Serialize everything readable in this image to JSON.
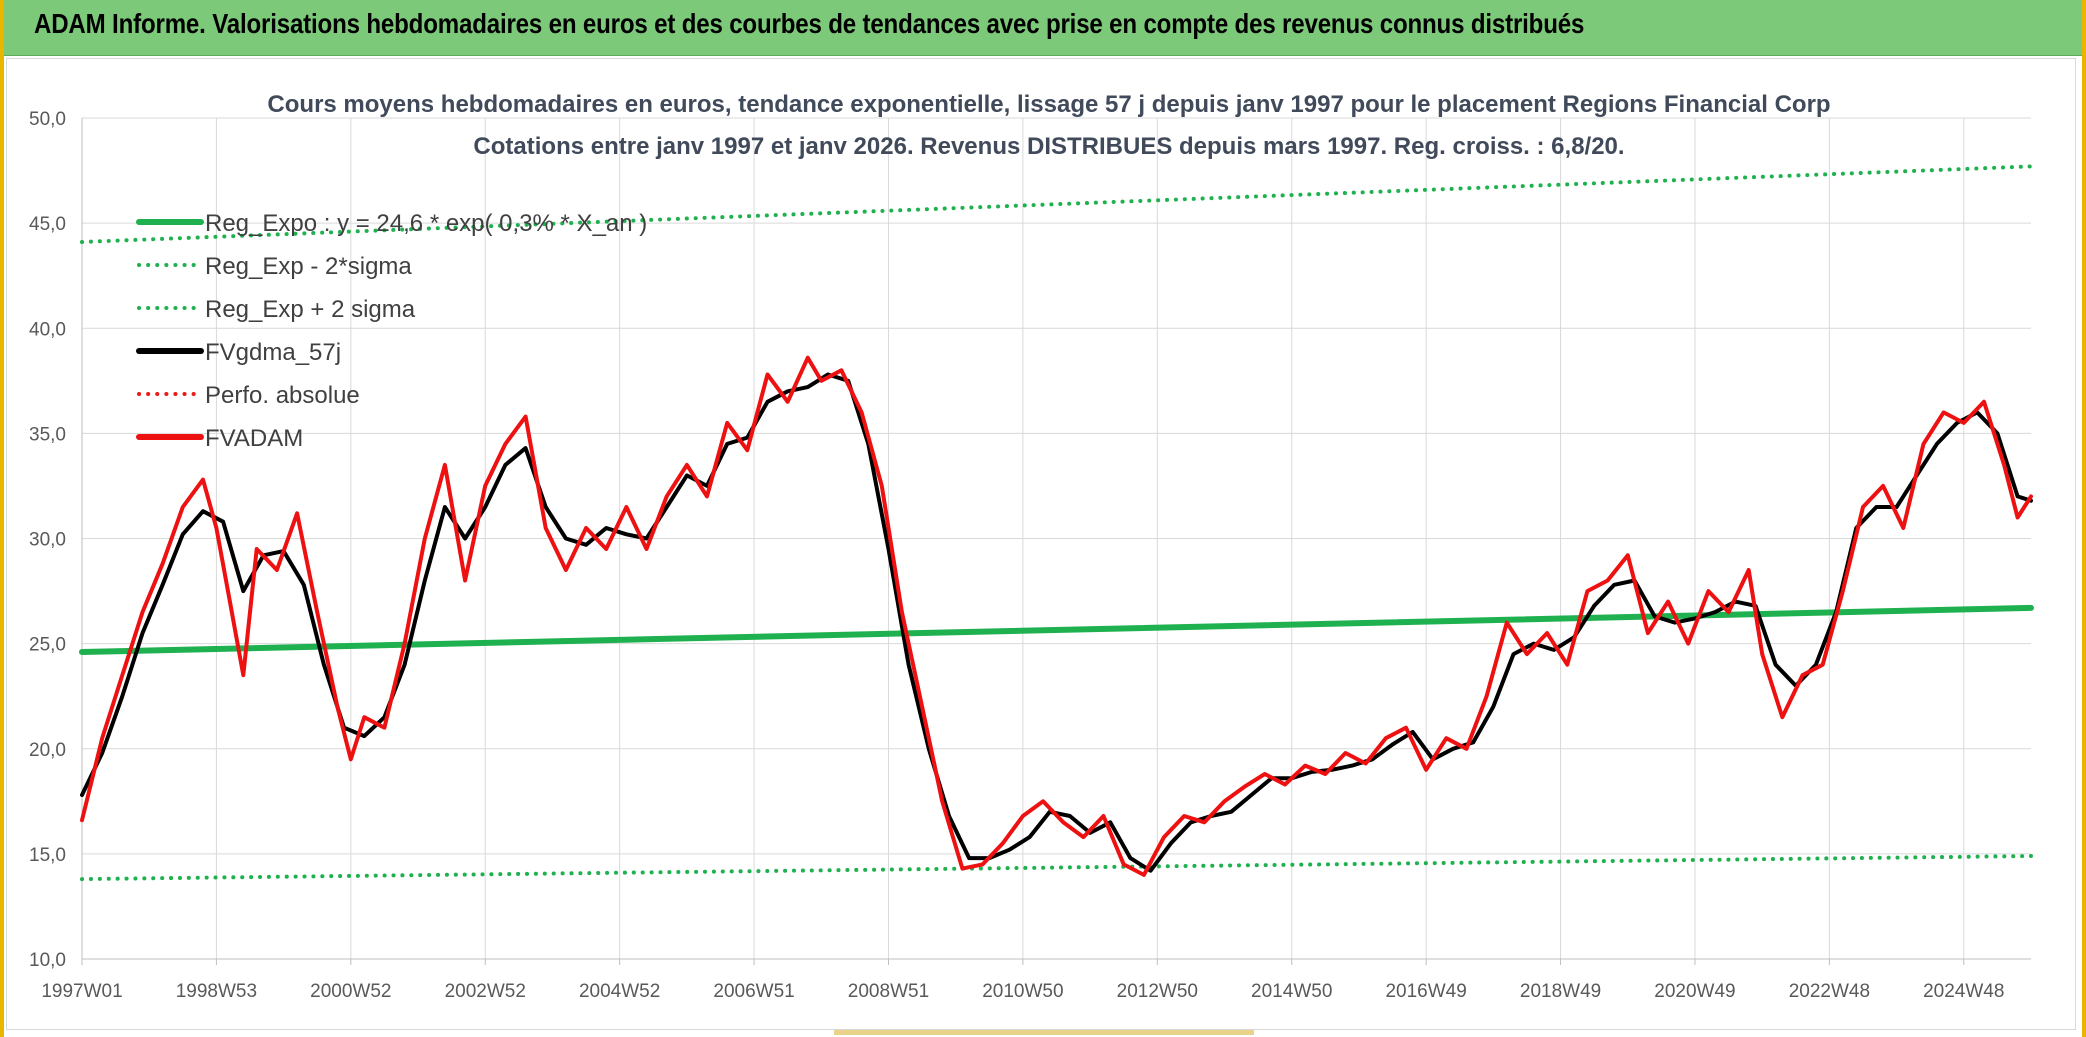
{
  "header": {
    "title": "ADAM Informe. Valorisations hebdomadaires en euros et des courbes de tendances avec prise en compte des revenus connus distribués"
  },
  "chart_data": {
    "type": "line",
    "title_lines": [
      "Cours moyens hebdomadaires en euros, tendance exponentielle, lissage 57 j depuis janv 1997 pour le placement Regions Financial Corp",
      "Cotations entre janv 1997 et janv 2026. Revenus DISTRIBUES depuis mars 1997. Reg. croiss. : 6,8/20."
    ],
    "xlabel": "",
    "ylabel": "",
    "xlim": [
      1997.0,
      2026.0
    ],
    "ylim": [
      10.0,
      50.0
    ],
    "y_ticks": [
      "10,0",
      "15,0",
      "20,0",
      "25,0",
      "30,0",
      "35,0",
      "40,0",
      "45,0",
      "50,0"
    ],
    "x_ticks": [
      {
        "label": "1997W01",
        "x": 1997.0
      },
      {
        "label": "1998W53",
        "x": 1999.0
      },
      {
        "label": "2000W52",
        "x": 2001.0
      },
      {
        "label": "2002W52",
        "x": 2003.0
      },
      {
        "label": "2004W52",
        "x": 2005.0
      },
      {
        "label": "2006W51",
        "x": 2007.0
      },
      {
        "label": "2008W51",
        "x": 2009.0
      },
      {
        "label": "2010W50",
        "x": 2011.0
      },
      {
        "label": "2012W50",
        "x": 2013.0
      },
      {
        "label": "2014W50",
        "x": 2015.0
      },
      {
        "label": "2016W49",
        "x": 2017.0
      },
      {
        "label": "2018W49",
        "x": 2019.0
      },
      {
        "label": "2020W49",
        "x": 2021.0
      },
      {
        "label": "2022W48",
        "x": 2023.0
      },
      {
        "label": "2024W48",
        "x": 2025.0
      }
    ],
    "grid": true,
    "legend_position": "top-left",
    "series": [
      {
        "name": "Reg_Expo : y = 24,6 * exp( 0,3% * X_an )",
        "color": "#1fb14f",
        "style": "solid",
        "width": 6,
        "points": [
          [
            1997.0,
            24.6
          ],
          [
            2026.0,
            26.7
          ]
        ]
      },
      {
        "name": "Reg_Exp - 2*sigma",
        "color": "#1fb14f",
        "style": "dotted",
        "width": 4,
        "points": [
          [
            1997.0,
            13.8
          ],
          [
            2026.0,
            14.9
          ]
        ]
      },
      {
        "name": "Reg_Exp + 2 sigma",
        "color": "#1fb14f",
        "style": "dotted",
        "width": 4,
        "points": [
          [
            1997.0,
            44.1
          ],
          [
            2026.0,
            47.7
          ]
        ]
      },
      {
        "name": "FVgdma_57j",
        "color": "#000000",
        "style": "solid",
        "width": 4,
        "points": [
          [
            1997.0,
            17.8
          ],
          [
            1997.3,
            19.8
          ],
          [
            1997.6,
            22.5
          ],
          [
            1997.9,
            25.5
          ],
          [
            1998.2,
            27.8
          ],
          [
            1998.5,
            30.2
          ],
          [
            1998.8,
            31.3
          ],
          [
            1999.1,
            30.8
          ],
          [
            1999.4,
            27.5
          ],
          [
            1999.7,
            29.2
          ],
          [
            2000.0,
            29.4
          ],
          [
            2000.3,
            27.8
          ],
          [
            2000.6,
            24.0
          ],
          [
            2000.9,
            21.0
          ],
          [
            2001.2,
            20.6
          ],
          [
            2001.5,
            21.5
          ],
          [
            2001.8,
            24.0
          ],
          [
            2002.1,
            28.0
          ],
          [
            2002.4,
            31.5
          ],
          [
            2002.7,
            30.0
          ],
          [
            2003.0,
            31.5
          ],
          [
            2003.3,
            33.5
          ],
          [
            2003.6,
            34.3
          ],
          [
            2003.9,
            31.5
          ],
          [
            2004.2,
            30.0
          ],
          [
            2004.5,
            29.7
          ],
          [
            2004.8,
            30.5
          ],
          [
            2005.1,
            30.2
          ],
          [
            2005.4,
            30.0
          ],
          [
            2005.7,
            31.5
          ],
          [
            2006.0,
            33.0
          ],
          [
            2006.3,
            32.5
          ],
          [
            2006.6,
            34.5
          ],
          [
            2006.9,
            34.8
          ],
          [
            2007.2,
            36.5
          ],
          [
            2007.5,
            37.0
          ],
          [
            2007.8,
            37.2
          ],
          [
            2008.1,
            37.8
          ],
          [
            2008.4,
            37.5
          ],
          [
            2008.7,
            34.5
          ],
          [
            2009.0,
            29.5
          ],
          [
            2009.3,
            24.0
          ],
          [
            2009.6,
            20.0
          ],
          [
            2009.9,
            16.8
          ],
          [
            2010.2,
            14.8
          ],
          [
            2010.5,
            14.8
          ],
          [
            2010.8,
            15.2
          ],
          [
            2011.1,
            15.8
          ],
          [
            2011.4,
            17.0
          ],
          [
            2011.7,
            16.8
          ],
          [
            2012.0,
            16.0
          ],
          [
            2012.3,
            16.5
          ],
          [
            2012.6,
            14.8
          ],
          [
            2012.9,
            14.2
          ],
          [
            2013.2,
            15.5
          ],
          [
            2013.5,
            16.5
          ],
          [
            2013.8,
            16.8
          ],
          [
            2014.1,
            17.0
          ],
          [
            2014.4,
            17.8
          ],
          [
            2014.7,
            18.6
          ],
          [
            2015.0,
            18.6
          ],
          [
            2015.3,
            18.9
          ],
          [
            2015.6,
            19.0
          ],
          [
            2015.9,
            19.2
          ],
          [
            2016.2,
            19.5
          ],
          [
            2016.5,
            20.2
          ],
          [
            2016.8,
            20.8
          ],
          [
            2017.1,
            19.5
          ],
          [
            2017.4,
            20.0
          ],
          [
            2017.7,
            20.3
          ],
          [
            2018.0,
            22.0
          ],
          [
            2018.3,
            24.5
          ],
          [
            2018.6,
            25.0
          ],
          [
            2018.9,
            24.7
          ],
          [
            2019.2,
            25.3
          ],
          [
            2019.5,
            26.8
          ],
          [
            2019.8,
            27.8
          ],
          [
            2020.1,
            28.0
          ],
          [
            2020.4,
            26.3
          ],
          [
            2020.7,
            26.0
          ],
          [
            2021.0,
            26.2
          ],
          [
            2021.3,
            26.5
          ],
          [
            2021.6,
            27.0
          ],
          [
            2021.9,
            26.8
          ],
          [
            2022.2,
            24.0
          ],
          [
            2022.5,
            23.0
          ],
          [
            2022.8,
            24.0
          ],
          [
            2023.1,
            26.5
          ],
          [
            2023.4,
            30.5
          ],
          [
            2023.7,
            31.5
          ],
          [
            2024.0,
            31.5
          ],
          [
            2024.3,
            33.0
          ],
          [
            2024.6,
            34.5
          ],
          [
            2024.9,
            35.5
          ],
          [
            2025.2,
            36.0
          ],
          [
            2025.5,
            35.0
          ],
          [
            2025.8,
            32.0
          ],
          [
            2026.0,
            31.8
          ]
        ]
      },
      {
        "name": "Perfo. absolue",
        "color": "#e81c1c",
        "style": "dotted",
        "width": 3,
        "points": []
      },
      {
        "name": "FVADAM",
        "color": "#ee1111",
        "style": "solid",
        "width": 4,
        "points": [
          [
            1997.0,
            16.6
          ],
          [
            1997.3,
            20.5
          ],
          [
            1997.6,
            23.5
          ],
          [
            1997.9,
            26.5
          ],
          [
            1998.2,
            28.8
          ],
          [
            1998.5,
            31.5
          ],
          [
            1998.8,
            32.8
          ],
          [
            1999.0,
            30.5
          ],
          [
            1999.2,
            27.0
          ],
          [
            1999.4,
            23.5
          ],
          [
            1999.6,
            29.5
          ],
          [
            1999.9,
            28.5
          ],
          [
            2000.2,
            31.2
          ],
          [
            2000.5,
            26.5
          ],
          [
            2000.8,
            22.0
          ],
          [
            2001.0,
            19.5
          ],
          [
            2001.2,
            21.5
          ],
          [
            2001.5,
            21.0
          ],
          [
            2001.8,
            25.0
          ],
          [
            2002.1,
            30.0
          ],
          [
            2002.4,
            33.5
          ],
          [
            2002.7,
            28.0
          ],
          [
            2003.0,
            32.5
          ],
          [
            2003.3,
            34.5
          ],
          [
            2003.6,
            35.8
          ],
          [
            2003.9,
            30.5
          ],
          [
            2004.2,
            28.5
          ],
          [
            2004.5,
            30.5
          ],
          [
            2004.8,
            29.5
          ],
          [
            2005.1,
            31.5
          ],
          [
            2005.4,
            29.5
          ],
          [
            2005.7,
            32.0
          ],
          [
            2006.0,
            33.5
          ],
          [
            2006.3,
            32.0
          ],
          [
            2006.6,
            35.5
          ],
          [
            2006.9,
            34.2
          ],
          [
            2007.2,
            37.8
          ],
          [
            2007.5,
            36.5
          ],
          [
            2007.8,
            38.6
          ],
          [
            2008.0,
            37.5
          ],
          [
            2008.3,
            38.0
          ],
          [
            2008.6,
            36.0
          ],
          [
            2008.9,
            32.5
          ],
          [
            2009.2,
            26.5
          ],
          [
            2009.5,
            22.0
          ],
          [
            2009.8,
            17.5
          ],
          [
            2010.1,
            14.3
          ],
          [
            2010.4,
            14.5
          ],
          [
            2010.7,
            15.5
          ],
          [
            2011.0,
            16.8
          ],
          [
            2011.3,
            17.5
          ],
          [
            2011.6,
            16.5
          ],
          [
            2011.9,
            15.8
          ],
          [
            2012.2,
            16.8
          ],
          [
            2012.5,
            14.5
          ],
          [
            2012.8,
            14.0
          ],
          [
            2013.1,
            15.8
          ],
          [
            2013.4,
            16.8
          ],
          [
            2013.7,
            16.5
          ],
          [
            2014.0,
            17.5
          ],
          [
            2014.3,
            18.2
          ],
          [
            2014.6,
            18.8
          ],
          [
            2014.9,
            18.3
          ],
          [
            2015.2,
            19.2
          ],
          [
            2015.5,
            18.8
          ],
          [
            2015.8,
            19.8
          ],
          [
            2016.1,
            19.3
          ],
          [
            2016.4,
            20.5
          ],
          [
            2016.7,
            21.0
          ],
          [
            2017.0,
            19.0
          ],
          [
            2017.3,
            20.5
          ],
          [
            2017.6,
            20.0
          ],
          [
            2017.9,
            22.5
          ],
          [
            2018.2,
            26.0
          ],
          [
            2018.5,
            24.5
          ],
          [
            2018.8,
            25.5
          ],
          [
            2019.1,
            24.0
          ],
          [
            2019.4,
            27.5
          ],
          [
            2019.7,
            28.0
          ],
          [
            2020.0,
            29.2
          ],
          [
            2020.3,
            25.5
          ],
          [
            2020.6,
            27.0
          ],
          [
            2020.9,
            25.0
          ],
          [
            2021.2,
            27.5
          ],
          [
            2021.5,
            26.5
          ],
          [
            2021.8,
            28.5
          ],
          [
            2022.0,
            24.5
          ],
          [
            2022.3,
            21.5
          ],
          [
            2022.6,
            23.5
          ],
          [
            2022.9,
            24.0
          ],
          [
            2023.2,
            27.5
          ],
          [
            2023.5,
            31.5
          ],
          [
            2023.8,
            32.5
          ],
          [
            2024.1,
            30.5
          ],
          [
            2024.4,
            34.5
          ],
          [
            2024.7,
            36.0
          ],
          [
            2025.0,
            35.5
          ],
          [
            2025.3,
            36.5
          ],
          [
            2025.6,
            33.5
          ],
          [
            2025.8,
            31.0
          ],
          [
            2026.0,
            32.0
          ]
        ]
      }
    ]
  }
}
